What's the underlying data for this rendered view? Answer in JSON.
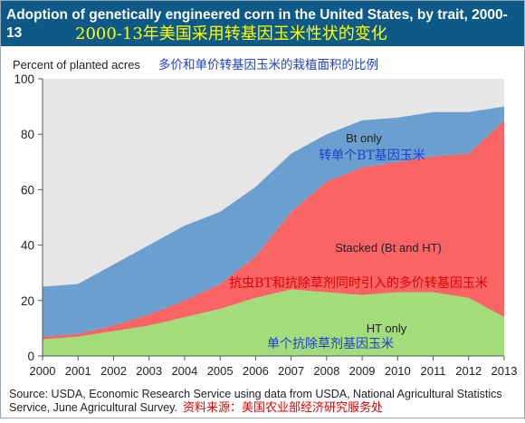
{
  "title": {
    "english": "Adoption of genetically engineered corn in the United States, by trait, 2000-13",
    "chinese": "2000-13年美国采用转基因玉米性状的变化"
  },
  "source": {
    "english": "Source: USDA, Economic Research Service using data from USDA, National Agricultural Statistics Service, June Agricultural Survey.",
    "chinese": "资料来源：美国农业部经济研究服务处"
  },
  "colors": {
    "title_bg": "#0d5a88",
    "bt_only": "#6a9fcf",
    "stacked": "#f96464",
    "ht_only": "#a3dc7a",
    "remainder": "#e6e6e6",
    "annotation_blue": "#1f3fd1",
    "annotation_red": "#e00000"
  },
  "chart_data": {
    "type": "area",
    "stacked": true,
    "ylabel": "Percent of planted acres",
    "ylabel_cn": "多价和单价转基因玉米的栽植面积的比例",
    "ylim": [
      0,
      100
    ],
    "yticks": [
      0,
      20,
      40,
      60,
      80,
      100
    ],
    "x": [
      "2000",
      "2001",
      "2002",
      "2003",
      "2004",
      "2005",
      "2006",
      "2007",
      "2008",
      "2009",
      "2010",
      "2011",
      "2012",
      "2013"
    ],
    "grid": false,
    "series": [
      {
        "name": "HT only",
        "name_cn": "单个抗除草剂基因玉米",
        "color_key": "ht_only",
        "values": [
          6,
          7,
          9,
          11,
          14,
          17,
          21,
          24,
          23,
          22,
          23,
          23,
          21,
          14
        ]
      },
      {
        "name": "Stacked (Bt and HT)",
        "name_cn": "抗虫BT和抗除草剂同时引入的多价转基因玉米",
        "color_key": "stacked",
        "values": [
          1,
          1,
          2,
          4,
          6,
          9,
          15,
          28,
          40,
          46,
          47,
          49,
          52,
          71
        ]
      },
      {
        "name": "Bt only",
        "name_cn": "转单个BT基因玉米",
        "color_key": "bt_only",
        "values": [
          18,
          18,
          22,
          25,
          27,
          26,
          25,
          21,
          17,
          17,
          16,
          16,
          15,
          5
        ]
      }
    ]
  }
}
